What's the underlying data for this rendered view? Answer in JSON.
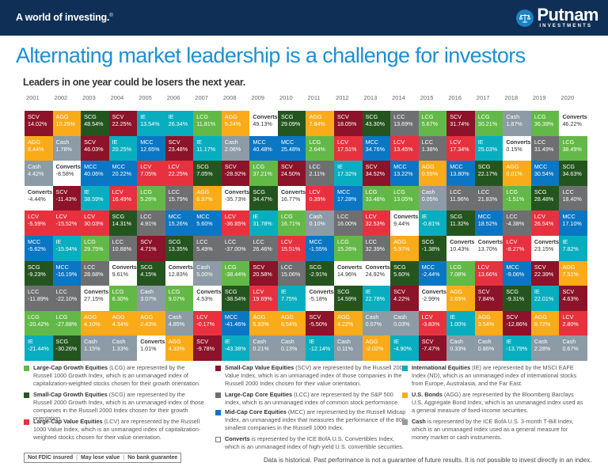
{
  "header": {
    "tagline": "A world of investing.",
    "tagline_mark": "®",
    "brand": "Putnam",
    "brand_sub": "INVESTMENTS",
    "brand_color": "#0f2f57"
  },
  "title": "Alternating market leadership is a challenge for investors",
  "subtitle": "Leaders in one year could be losers the next year.",
  "colors": {
    "LCG": "#63b947",
    "SCG": "#25551f",
    "LCV": "#e8313f",
    "SCV": "#8c1329",
    "LCC": "#6e6f71",
    "MCC": "#0b76c4",
    "IE": "#08aebf",
    "AGG": "#faab19",
    "Cash": "#8d9ba6",
    "Converts": "#ffffff"
  },
  "chart_data": {
    "type": "table",
    "title": "Alternating market leadership is a challenge for investors",
    "subtitle": "Leaders in one year could be losers the next year.",
    "years": [
      "2001",
      "2002",
      "2003",
      "2004",
      "2005",
      "2006",
      "2007",
      "2008",
      "2009",
      "2010",
      "2011",
      "2012",
      "2013",
      "2014",
      "2015",
      "2016",
      "2017",
      "2018",
      "2019",
      "2020"
    ],
    "columns": [
      [
        [
          "SCV",
          "14.02%"
        ],
        [
          "AGG",
          "8.44%"
        ],
        [
          "Cash",
          "4.42%"
        ],
        [
          "Converts",
          "-4.44%"
        ],
        [
          "LCV",
          "-5.59%"
        ],
        [
          "MCC",
          "-5.62%"
        ],
        [
          "SCG",
          "-9.23%"
        ],
        [
          "LCC",
          "-11.89%"
        ],
        [
          "LCG",
          "-20.42%"
        ],
        [
          "IE",
          "-21.44%"
        ]
      ],
      [
        [
          "AGG",
          "10.25%"
        ],
        [
          "Cash",
          "1.78%"
        ],
        [
          "Converts",
          "-8.58%"
        ],
        [
          "SCV",
          "-11.43%"
        ],
        [
          "LCV",
          "-15.52%"
        ],
        [
          "IE",
          "-15.94%"
        ],
        [
          "MCC",
          "-16.19%"
        ],
        [
          "LCC",
          "-22.10%"
        ],
        [
          "LCG",
          "-27.88%"
        ],
        [
          "SCG",
          "-30.26%"
        ]
      ],
      [
        [
          "SCG",
          "48.54%"
        ],
        [
          "SCV",
          "46.03%"
        ],
        [
          "MCC",
          "40.06%"
        ],
        [
          "IE",
          "38.59%"
        ],
        [
          "LCV",
          "30.03%"
        ],
        [
          "LCG",
          "29.75%"
        ],
        [
          "LCC",
          "28.68%"
        ],
        [
          "Converts",
          "27.15%"
        ],
        [
          "AGG",
          "4.10%"
        ],
        [
          "Cash",
          "1.15%"
        ]
      ],
      [
        [
          "SCV",
          "22.25%"
        ],
        [
          "IE",
          "20.25%"
        ],
        [
          "MCC",
          "20.22%"
        ],
        [
          "LCV",
          "16.49%"
        ],
        [
          "SCG",
          "14.31%"
        ],
        [
          "LCC",
          "10.88%"
        ],
        [
          "Converts",
          "9.61%"
        ],
        [
          "LCG",
          "6.30%"
        ],
        [
          "AGG",
          "4.34%"
        ],
        [
          "Cash",
          "1.33%"
        ]
      ],
      [
        [
          "IE",
          "13.54%"
        ],
        [
          "MCC",
          "12.65%"
        ],
        [
          "LCV",
          "7.05%"
        ],
        [
          "LCG",
          "5.26%"
        ],
        [
          "LCC",
          "4.91%"
        ],
        [
          "SCV",
          "4.71%"
        ],
        [
          "SCG",
          "4.15%"
        ],
        [
          "Cash",
          "3.07%"
        ],
        [
          "AGG",
          "2.43%"
        ],
        [
          "Converts",
          "1.01%"
        ]
      ],
      [
        [
          "IE",
          "26.34%"
        ],
        [
          "SCV",
          "23.48%"
        ],
        [
          "LCV",
          "22.25%"
        ],
        [
          "LCC",
          "15.79%"
        ],
        [
          "MCC",
          "15.26%"
        ],
        [
          "SCG",
          "13.35%"
        ],
        [
          "Converts",
          "12.83%"
        ],
        [
          "LCG",
          "9.07%"
        ],
        [
          "Cash",
          "4.85%"
        ],
        [
          "AGG",
          "4.33%"
        ]
      ],
      [
        [
          "LCG",
          "11.81%"
        ],
        [
          "IE",
          "11.17%"
        ],
        [
          "SCG",
          "7.05%"
        ],
        [
          "AGG",
          "6.97%"
        ],
        [
          "MCC",
          "5.60%"
        ],
        [
          "LCC",
          "5.49%"
        ],
        [
          "Cash",
          "5.00%"
        ],
        [
          "Converts",
          "4.53%"
        ],
        [
          "LCV",
          "-0.17%"
        ],
        [
          "SCV",
          "-9.78%"
        ]
      ],
      [
        [
          "AGG",
          "5.24%"
        ],
        [
          "Cash",
          "2.06%"
        ],
        [
          "SCV",
          "-28.92%"
        ],
        [
          "Converts",
          "-35.73%"
        ],
        [
          "LCV",
          "-36.85%"
        ],
        [
          "LCC",
          "-37.00%"
        ],
        [
          "LCG",
          "-38.44%"
        ],
        [
          "SCG",
          "-38.54%"
        ],
        [
          "MCC",
          "-41.46%"
        ],
        [
          "IE",
          "-43.38%"
        ]
      ],
      [
        [
          "Converts",
          "49.13%"
        ],
        [
          "MCC",
          "40.48%"
        ],
        [
          "LCG",
          "37.21%"
        ],
        [
          "SCG",
          "34.47%"
        ],
        [
          "IE",
          "31.78%"
        ],
        [
          "LCC",
          "26.46%"
        ],
        [
          "SCV",
          "20.58%"
        ],
        [
          "LCV",
          "19.69%"
        ],
        [
          "AGG",
          "5.93%"
        ],
        [
          "Cash",
          "0.21%"
        ]
      ],
      [
        [
          "SCG",
          "29.09%"
        ],
        [
          "MCC",
          "25.48%"
        ],
        [
          "SCV",
          "24.50%"
        ],
        [
          "Converts",
          "16.77%"
        ],
        [
          "LCG",
          "16.71%"
        ],
        [
          "LCV",
          "15.51%"
        ],
        [
          "LCC",
          "15.06%"
        ],
        [
          "IE",
          "7.75%"
        ],
        [
          "AGG",
          "6.54%"
        ],
        [
          "Cash",
          "0.13%"
        ]
      ],
      [
        [
          "AGG",
          "7.84%"
        ],
        [
          "LCG",
          "2.64%"
        ],
        [
          "LCC",
          "2.11%"
        ],
        [
          "LCV",
          "0.39%"
        ],
        [
          "Cash",
          "0.10%"
        ],
        [
          "MCC",
          "-1.55%"
        ],
        [
          "SCG",
          "-2.91%"
        ],
        [
          "Converts",
          "-5.18%"
        ],
        [
          "SCV",
          "-5.50%"
        ],
        [
          "IE",
          "-12.14%"
        ]
      ],
      [
        [
          "SCV",
          "18.05%"
        ],
        [
          "LCV",
          "17.51%"
        ],
        [
          "IE",
          "17.32%"
        ],
        [
          "MCC",
          "17.28%"
        ],
        [
          "LCC",
          "16.00%"
        ],
        [
          "LCG",
          "15.26%"
        ],
        [
          "Converts",
          "14.96%"
        ],
        [
          "SCG",
          "14.59%"
        ],
        [
          "AGG",
          "4.22%"
        ],
        [
          "Cash",
          "0.11%"
        ]
      ],
      [
        [
          "SCG",
          "43.30%"
        ],
        [
          "MCC",
          "34.76%"
        ],
        [
          "SCV",
          "34.52%"
        ],
        [
          "LCG",
          "33.48%"
        ],
        [
          "LCV",
          "32.53%"
        ],
        [
          "LCC",
          "32.39%"
        ],
        [
          "Converts",
          "24.92%"
        ],
        [
          "IE",
          "22.78%"
        ],
        [
          "Cash",
          "0.07%"
        ],
        [
          "AGG",
          "-2.02%"
        ]
      ],
      [
        [
          "LCC",
          "13.69%"
        ],
        [
          "LCV",
          "13.45%"
        ],
        [
          "MCC",
          "13.22%"
        ],
        [
          "LCG",
          "13.05%"
        ],
        [
          "Converts",
          "9.44%"
        ],
        [
          "AGG",
          "5.97%"
        ],
        [
          "SCG",
          "5.60%"
        ],
        [
          "SCV",
          "4.22%"
        ],
        [
          "Cash",
          "0.03%"
        ],
        [
          "IE",
          "-4.90%"
        ]
      ],
      [
        [
          "LCG",
          "5.67%"
        ],
        [
          "LCC",
          "1.38%"
        ],
        [
          "AGG",
          "0.55%"
        ],
        [
          "Cash",
          "0.05%"
        ],
        [
          "IE",
          "-0.81%"
        ],
        [
          "SCG",
          "-1.38%"
        ],
        [
          "MCC",
          "-2.44%"
        ],
        [
          "Converts",
          "-2.99%"
        ],
        [
          "LCV",
          "-3.83%"
        ],
        [
          "SCV",
          "-7.47%"
        ]
      ],
      [
        [
          "SCV",
          "31.74%"
        ],
        [
          "LCV",
          "17.34%"
        ],
        [
          "MCC",
          "13.80%"
        ],
        [
          "LCC",
          "11.96%"
        ],
        [
          "SCG",
          "11.32%"
        ],
        [
          "Converts",
          "10.43%"
        ],
        [
          "LCG",
          "7.08%"
        ],
        [
          "AGG",
          "2.65%"
        ],
        [
          "IE",
          "1.00%"
        ],
        [
          "Cash",
          "0.33%"
        ]
      ],
      [
        [
          "LCG",
          "30.21%"
        ],
        [
          "IE",
          "25.03%"
        ],
        [
          "SCG",
          "22.17%"
        ],
        [
          "LCC",
          "21.83%"
        ],
        [
          "MCC",
          "18.52%"
        ],
        [
          "Converts",
          "13.70%"
        ],
        [
          "LCV",
          "13.66%"
        ],
        [
          "SCV",
          "7.84%"
        ],
        [
          "AGG",
          "3.54%"
        ],
        [
          "Cash",
          "0.86%"
        ]
      ],
      [
        [
          "Cash",
          "1.87%"
        ],
        [
          "Converts",
          "0.15%"
        ],
        [
          "AGG",
          "0.01%"
        ],
        [
          "LCG",
          "-1.51%"
        ],
        [
          "LCC",
          "-4.38%"
        ],
        [
          "LCV",
          "-8.27%"
        ],
        [
          "MCC",
          "-9.06%"
        ],
        [
          "SCG",
          "-9.31%"
        ],
        [
          "SCV",
          "-12.86%"
        ],
        [
          "IE",
          "-13.79%"
        ]
      ],
      [
        [
          "LCG",
          "36.39%"
        ],
        [
          "LCC",
          "31.49%"
        ],
        [
          "MCC",
          "30.54%"
        ],
        [
          "SCG",
          "28.48%"
        ],
        [
          "LCV",
          "26.54%"
        ],
        [
          "Converts",
          "23.15%"
        ],
        [
          "SCV",
          "22.39%"
        ],
        [
          "IE",
          "22.01%"
        ],
        [
          "AGG",
          "8.72%"
        ],
        [
          "Cash",
          "2.28%"
        ]
      ],
      [
        [
          "Converts",
          "46.22%"
        ],
        [
          "LCG",
          "38.49%"
        ],
        [
          "SCG",
          "34.63%"
        ],
        [
          "LCC",
          "18.40%"
        ],
        [
          "MCC",
          "17.10%"
        ],
        [
          "IE",
          "7.82%"
        ],
        [
          "AGG",
          "7.51%"
        ],
        [
          "SCV",
          "4.63%"
        ],
        [
          "LCV",
          "2.80%"
        ],
        [
          "Cash",
          "0.67%"
        ]
      ]
    ]
  },
  "legend": [
    {
      "key": "LCG",
      "name": "Large-Cap Growth Equities",
      "text": " (LCG) are represented by the Russell 1000 Growth Index, which is an unmanaged index of capitalization-weighted stocks chosen for their growth orientation."
    },
    {
      "key": "SCG",
      "name": "Small-Cap Growth Equities",
      "text": " (SCG) are represented by the Russell 2000 Growth Index, which is an unmanaged index of those companies in the Russell 2000 Index chosen for their growth orientation."
    },
    {
      "key": "LCV",
      "name": "Large-Cap Value Equities",
      "text": " (LCV) are represented by the Russell 1000 Value Index, which is an unmanaged index of capitalization-weighted stocks chosen for their value orientation."
    },
    {
      "key": "SCV",
      "name": "Small-Cap Value Equities",
      "text": " (SCV) are represented by the Russell 2000 Value Index, which is an unmanaged index of those companies in the Russell 2000 Index chosen for their value orientation."
    },
    {
      "key": "LCC",
      "name": "Large-Cap Core Equities",
      "text": " (LCC) are represented by the S&P 500 Index, which is an unmanaged index of common stock performance."
    },
    {
      "key": "MCC",
      "name": "Mid-Cap Core Equities",
      "text": " (MCC) are represented by the Russell Midcap Index, an unmanaged index that measures the performance of the 800 smallest companies in the Russell 1000 Index."
    },
    {
      "key": "Converts",
      "name": "Converts",
      "text": " is represented by the ICE BofA U.S. Convertibles Index, which is an unmanaged index of high-yield U.S. convertible securities."
    },
    {
      "key": "IE",
      "name": "International Equities",
      "text": " (IE) are represented by the MSCI  EAFE Index (ND), which is an unmanaged index of international stocks from Europe, Australasia, and the Far East."
    },
    {
      "key": "AGG",
      "name": "U.S. Bonds",
      "text": " (AGG) are represented by the Bloomberg Barclays U.S. Aggregate Bond Index, which is an unmanaged index used as a general measure of fixed-income securities."
    },
    {
      "key": "Cash",
      "name": "Cash",
      "text": " is represented by the ICE BofA U.S. 3-month T-Bill Index, which is an unmanaged index used as a general measure for money market or cash instruments."
    }
  ],
  "footer": {
    "badge": [
      "Not FDIC insured",
      "May lose value",
      "No bank guarantee"
    ],
    "disclaimer": "Data is historical. Past performance is not a guarantee of future results. It is not possible to invest directly in an index."
  }
}
